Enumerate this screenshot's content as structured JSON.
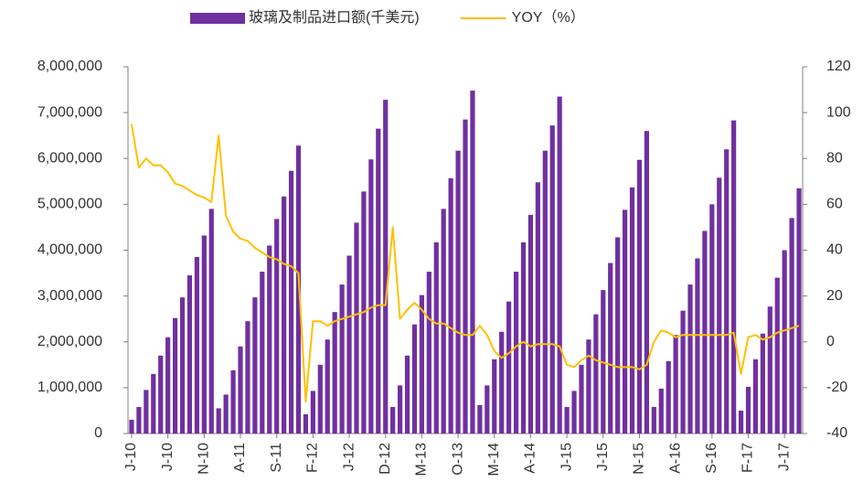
{
  "chart_data": {
    "type": "bar",
    "categories": [
      "J-10",
      null,
      null,
      null,
      null,
      "J-10",
      null,
      null,
      null,
      null,
      "N-10",
      null,
      null,
      null,
      null,
      "A-11",
      null,
      null,
      null,
      null,
      "S-11",
      null,
      null,
      null,
      null,
      "F-12",
      null,
      null,
      null,
      null,
      "J-12",
      null,
      null,
      null,
      null,
      "D-12",
      null,
      null,
      null,
      null,
      "M-13",
      null,
      null,
      null,
      null,
      "O-13",
      null,
      null,
      null,
      null,
      "M-14",
      null,
      null,
      null,
      null,
      "A-14",
      null,
      null,
      null,
      null,
      "J-15",
      null,
      null,
      null,
      null,
      "J-15",
      null,
      null,
      null,
      null,
      "N-15",
      null,
      null,
      null,
      null,
      "A-16",
      null,
      null,
      null,
      null,
      "S-16",
      null,
      null,
      null,
      null,
      "F-17",
      null,
      null,
      null,
      null,
      "J-17",
      null,
      null
    ],
    "series": [
      {
        "name": "玻璃及制品进口额(千美元)",
        "type": "bar",
        "color": "#7030a0",
        "values": [
          300000,
          580000,
          950000,
          1300000,
          1700000,
          2100000,
          2520000,
          2970000,
          3450000,
          3850000,
          4320000,
          4900000,
          550000,
          850000,
          1380000,
          1900000,
          2450000,
          2970000,
          3530000,
          4100000,
          4680000,
          5170000,
          5730000,
          6280000,
          420000,
          930000,
          1500000,
          2050000,
          2650000,
          3250000,
          3880000,
          4600000,
          5280000,
          5980000,
          6650000,
          7280000,
          580000,
          1050000,
          1700000,
          2380000,
          3020000,
          3530000,
          4170000,
          4900000,
          5570000,
          6170000,
          6850000,
          7480000,
          620000,
          1050000,
          1620000,
          2220000,
          2880000,
          3530000,
          4170000,
          4770000,
          5480000,
          6170000,
          6720000,
          7350000,
          580000,
          930000,
          1500000,
          2050000,
          2600000,
          3130000,
          3720000,
          4280000,
          4880000,
          5370000,
          5970000,
          6600000,
          580000,
          980000,
          1580000,
          2150000,
          2680000,
          3250000,
          3820000,
          4420000,
          5000000,
          5580000,
          6200000,
          6830000,
          500000,
          1020000,
          1620000,
          2180000,
          2770000,
          3400000,
          4000000,
          4700000,
          5350000
        ]
      },
      {
        "name": "YOY（%）",
        "type": "line",
        "axis": "y2",
        "color": "#ffc000",
        "values": [
          95,
          76,
          80,
          77,
          77,
          74,
          69,
          68,
          66,
          64,
          63,
          61,
          90,
          55,
          48,
          45,
          44,
          41,
          39,
          37,
          36,
          34,
          33,
          30,
          -26,
          9,
          9,
          7,
          9,
          10,
          11,
          12,
          13,
          15,
          16,
          16,
          50,
          10,
          14,
          17,
          14,
          10,
          8,
          8,
          6,
          4,
          3,
          3,
          7,
          3,
          -4,
          -7,
          -5,
          -2,
          0,
          -2,
          -1,
          -1,
          -1,
          -2,
          -10,
          -11,
          -8,
          -6,
          -8,
          -9,
          -10,
          -11,
          -11,
          -11,
          -12,
          -10,
          0,
          5,
          4,
          2,
          3,
          3,
          3,
          3,
          3,
          3,
          3,
          4,
          -14,
          2,
          3,
          1,
          2,
          4,
          5,
          6,
          7
        ]
      }
    ],
    "ylim": [
      0,
      8000000
    ],
    "yticks": [
      0,
      {
        "value": 1000000,
        "label": "1,000,000"
      },
      {
        "value": 2000000,
        "label": "2,000,000"
      },
      {
        "value": 3000000,
        "label": "3,000,000"
      },
      {
        "value": 4000000,
        "label": "4,000,000"
      },
      {
        "value": 5000000,
        "label": "5,000,000"
      },
      {
        "value": 6000000,
        "label": "6,000,000"
      },
      {
        "value": 7000000,
        "label": "7,000,000"
      },
      {
        "value": 8000000,
        "label": "8,000,000"
      }
    ],
    "y2lim": [
      -40,
      120
    ],
    "y2ticks": [
      -40,
      -20,
      0,
      20,
      40,
      60,
      80,
      100,
      120
    ],
    "legend": "top"
  }
}
